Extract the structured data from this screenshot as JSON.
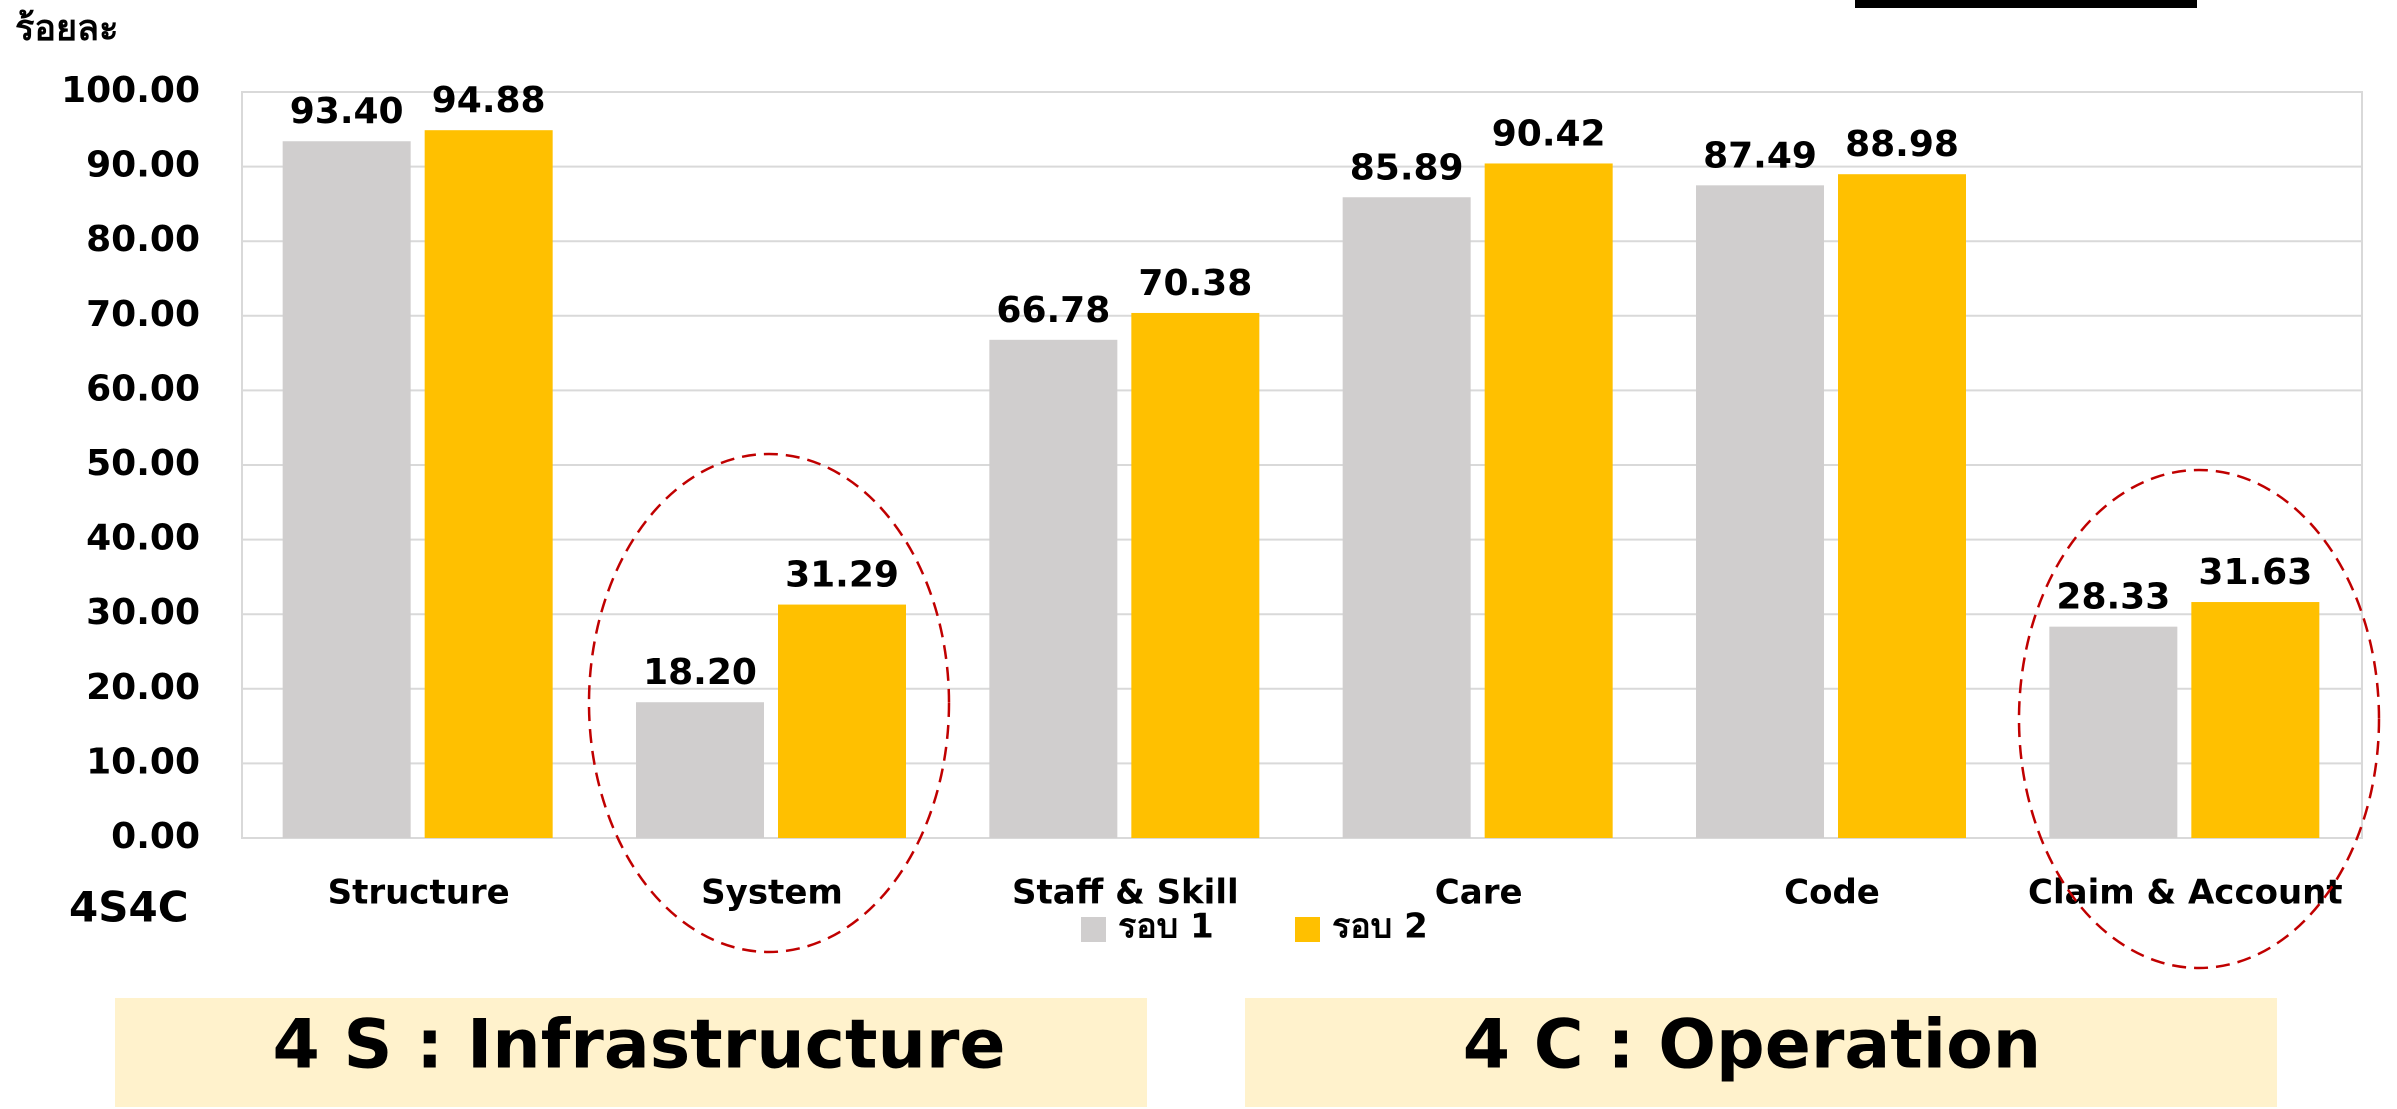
{
  "chart_data": {
    "type": "bar",
    "y_label": "ร้อยละ",
    "x_label": "4S4C",
    "categories": [
      "Structure",
      "System",
      "Staff & Skill",
      "Care",
      "Code",
      "Claim & Account"
    ],
    "series": [
      {
        "name": "รอบ 1",
        "color": "#d0cece",
        "values": [
          93.4,
          18.2,
          66.78,
          85.89,
          87.49,
          28.33
        ],
        "value_labels": [
          "93.40",
          "18.20",
          "66.78",
          "85.89",
          "87.49",
          "28.33"
        ]
      },
      {
        "name": "รอบ 2",
        "color": "#ffc000",
        "values": [
          94.88,
          31.29,
          70.38,
          90.42,
          88.98,
          31.63
        ],
        "value_labels": [
          "94.88",
          "31.29",
          "70.38",
          "90.42",
          "88.98",
          "31.63"
        ]
      }
    ],
    "ylim": [
      0,
      100
    ],
    "yticks": [
      {
        "value": 0,
        "label": "0.00"
      },
      {
        "value": 10,
        "label": "10.00"
      },
      {
        "value": 20,
        "label": "20.00"
      },
      {
        "value": 30,
        "label": "30.00"
      },
      {
        "value": 40,
        "label": "40.00"
      },
      {
        "value": 50,
        "label": "50.00"
      },
      {
        "value": 60,
        "label": "60.00"
      },
      {
        "value": 70,
        "label": "70.00"
      },
      {
        "value": 80,
        "label": "80.00"
      },
      {
        "value": 90,
        "label": "90.00"
      },
      {
        "value": 100,
        "label": "100.00"
      }
    ],
    "grid": true,
    "legend": "bottom"
  },
  "panels": [
    "4 S :  Infrastructure",
    "4 C : Operation"
  ]
}
